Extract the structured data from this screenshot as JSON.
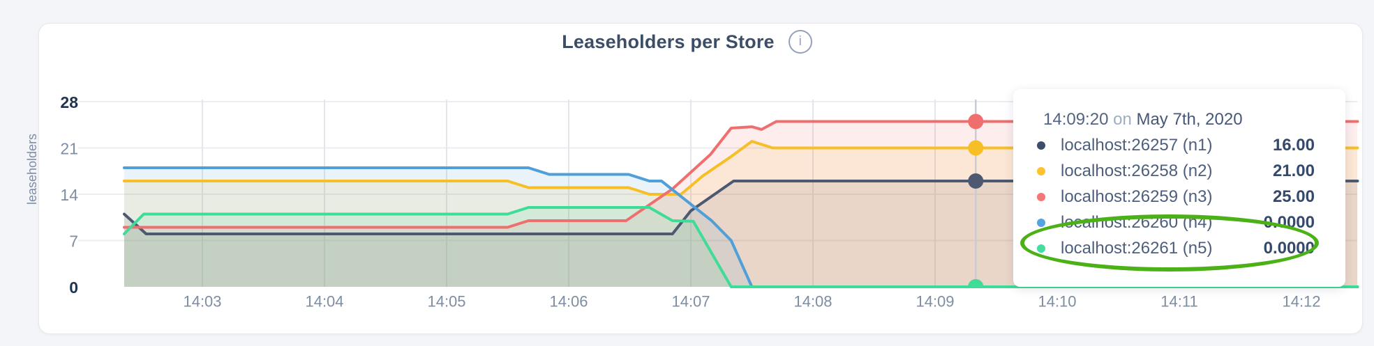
{
  "header": {
    "title": "Leaseholders per Store",
    "info_glyph": "i"
  },
  "y_axis": {
    "label": "leaseholders",
    "ticks": [
      0,
      7,
      14,
      21,
      28
    ]
  },
  "x_axis": {
    "tick_minutes": [
      3,
      4,
      5,
      6,
      7,
      8,
      9,
      10,
      11,
      12
    ],
    "tick_labels": [
      "14:03",
      "14:04",
      "14:05",
      "14:06",
      "14:07",
      "14:08",
      "14:09",
      "14:10",
      "14:11",
      "14:12"
    ]
  },
  "chart_data": {
    "type": "area",
    "title": "Leaseholders per Store",
    "ylabel": "leaseholders",
    "ylim": [
      0,
      28
    ],
    "y_ticks": [
      0,
      7,
      14,
      21,
      28
    ],
    "x_tick_labels": [
      "14:03",
      "14:04",
      "14:05",
      "14:06",
      "14:07",
      "14:08",
      "14:09",
      "14:10",
      "14:11",
      "14:12"
    ],
    "x_range_minutes_after_1400": [
      2.36,
      12.46
    ],
    "grid": true,
    "legend_position": "tooltip-overlay",
    "series": [
      {
        "name": "localhost:26257 (n1)",
        "color": "#4d5970",
        "points": [
          [
            2.36,
            11
          ],
          [
            2.54,
            8
          ],
          [
            6.85,
            8
          ],
          [
            7.0,
            11.5
          ],
          [
            7.35,
            16
          ],
          [
            12.46,
            16
          ]
        ]
      },
      {
        "name": "localhost:26258 (n2)",
        "color": "#f5bf25",
        "points": [
          [
            2.36,
            16
          ],
          [
            5.5,
            16
          ],
          [
            5.67,
            15
          ],
          [
            6.49,
            15
          ],
          [
            6.66,
            14
          ],
          [
            6.92,
            14
          ],
          [
            7.1,
            16.8
          ],
          [
            7.33,
            19.7
          ],
          [
            7.5,
            22
          ],
          [
            7.67,
            21
          ],
          [
            12.46,
            21
          ]
        ]
      },
      {
        "name": "localhost:26259 (n3)",
        "color": "#ef6f6e",
        "points": [
          [
            2.36,
            9
          ],
          [
            5.5,
            9
          ],
          [
            5.67,
            10
          ],
          [
            6.47,
            10
          ],
          [
            6.85,
            14.8
          ],
          [
            7.16,
            20
          ],
          [
            7.33,
            24
          ],
          [
            7.5,
            24.2
          ],
          [
            7.58,
            23.8
          ],
          [
            7.7,
            25
          ],
          [
            12.46,
            25
          ]
        ]
      },
      {
        "name": "localhost:26260 (n4)",
        "color": "#4f9fd9",
        "points": [
          [
            2.36,
            18
          ],
          [
            5.67,
            18
          ],
          [
            5.84,
            17
          ],
          [
            6.49,
            17
          ],
          [
            6.66,
            16
          ],
          [
            6.76,
            16
          ],
          [
            7.17,
            10
          ],
          [
            7.33,
            7
          ],
          [
            7.5,
            0
          ],
          [
            12.46,
            0
          ]
        ]
      },
      {
        "name": "localhost:26261 (n5)",
        "color": "#3edc97",
        "points": [
          [
            2.36,
            8
          ],
          [
            2.52,
            11
          ],
          [
            5.5,
            11
          ],
          [
            5.67,
            12
          ],
          [
            6.66,
            12
          ],
          [
            6.85,
            10
          ],
          [
            7.02,
            9.9
          ],
          [
            7.33,
            0
          ],
          [
            12.46,
            0
          ]
        ]
      }
    ],
    "cursor": {
      "time_label": "14:09:20",
      "time_minutes_after_1400": 9.333,
      "values": [
        16,
        21,
        25,
        0,
        0
      ]
    }
  },
  "tooltip": {
    "time": "14:09:20",
    "preposition": "on",
    "date": "May 7th, 2020",
    "rows": [
      {
        "name": "localhost:26257 (n1)",
        "value": "16.00",
        "color": "#3d4e6c"
      },
      {
        "name": "localhost:26258 (n2)",
        "value": "21.00",
        "color": "#fdc22d"
      },
      {
        "name": "localhost:26259 (n3)",
        "value": "25.00",
        "color": "#f47678"
      },
      {
        "name": "localhost:26260 (n4)",
        "value": "0.0000",
        "color": "#55a3e0"
      },
      {
        "name": "localhost:26261 (n5)",
        "value": "0.0000",
        "color": "#42dea0"
      }
    ]
  },
  "annotation": {
    "shape": "ellipse",
    "color": "#4cb117",
    "around_rows": [
      3,
      4
    ]
  },
  "colors": {
    "page_background": "#f4f5f8",
    "card_background": "#ffffff",
    "grid_vertical": "#e3e6ea",
    "grid_horizontal": "#eaedf1",
    "cursor_line": "#c7ccd6",
    "tick_text": "#7d8da3",
    "tick_text_bold": "#1e3450",
    "title_text": "#3c4d68"
  }
}
